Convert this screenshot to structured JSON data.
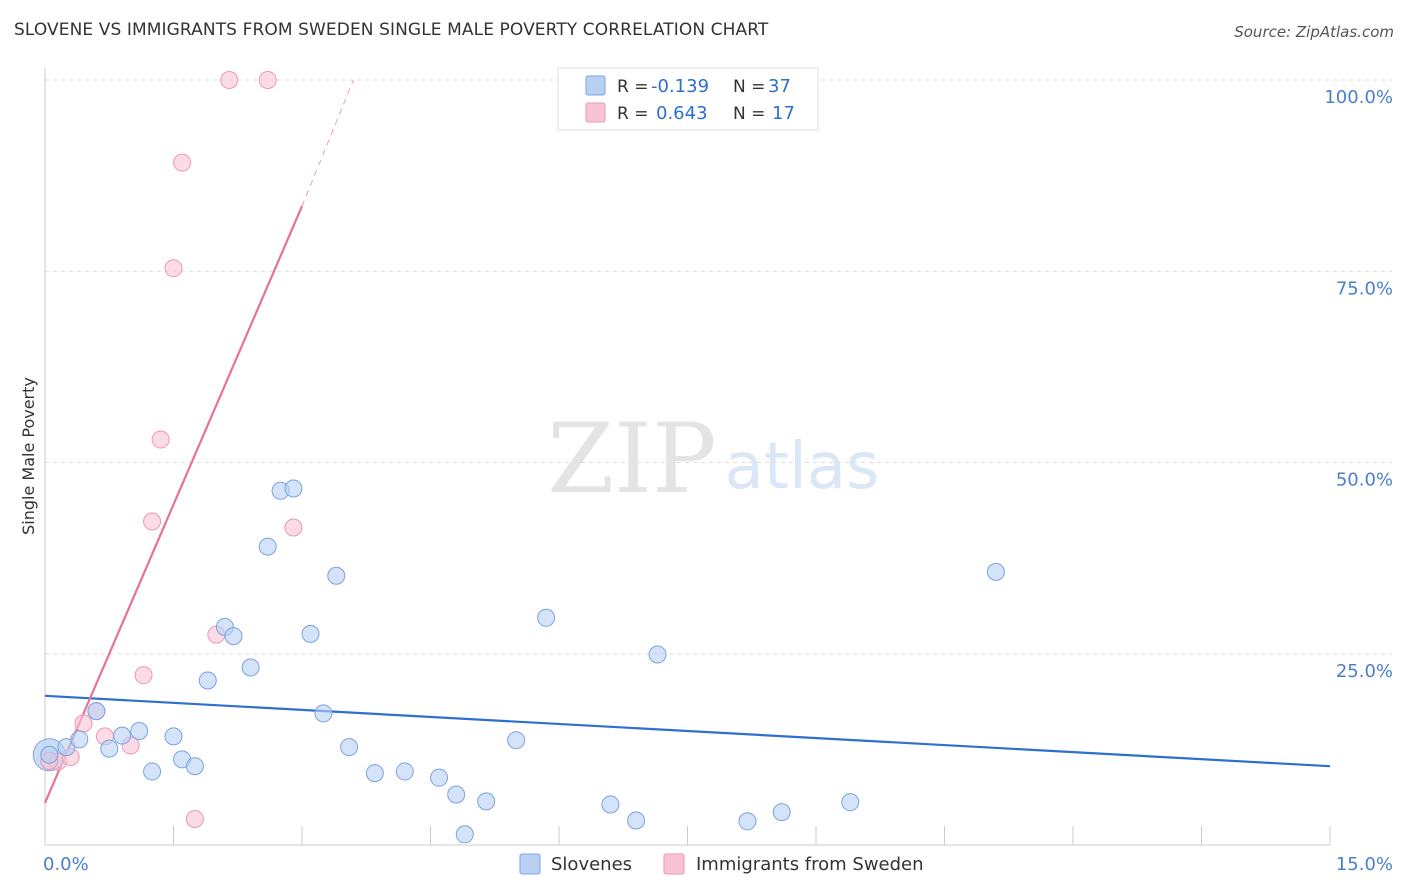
{
  "header": {
    "title": "SLOVENE VS IMMIGRANTS FROM SWEDEN SINGLE MALE POVERTY CORRELATION CHART",
    "source": "Source: ZipAtlas.com"
  },
  "watermark": {
    "zip": "ZIP",
    "atlas": "atlas"
  },
  "colors": {
    "blue_fill": "#b8d0f3",
    "blue_stroke": "#7aa3e0",
    "blue_line": "#2e6fcf",
    "pink_fill": "#f8c3d3",
    "pink_stroke": "#ec98b4",
    "pink_line": "#e8719a",
    "tick_label": "#4a7fd0",
    "grid": "#dddddd"
  },
  "legend": {
    "rows": [
      {
        "r_label": "R =",
        "r_value": "-0.139",
        "n_label": "N =",
        "n_value": "37"
      },
      {
        "r_label": "R =",
        "r_value": "0.643",
        "n_label": "N =",
        "n_value": "17"
      }
    ]
  },
  "chart_data": {
    "type": "scatter",
    "title": "SLOVENE VS IMMIGRANTS FROM SWEDEN SINGLE MALE POVERTY CORRELATION CHART",
    "xlabel": "",
    "ylabel": "Single Male Poverty",
    "xlim": [
      0,
      15
    ],
    "ylim": [
      0,
      100
    ],
    "x_tick_labels": [
      "0.0%",
      "15.0%"
    ],
    "y_ticks": [
      25,
      50,
      75,
      100
    ],
    "y_tick_labels": [
      "25.0%",
      "50.0%",
      "75.0%",
      "100.0%"
    ],
    "series": [
      {
        "name": "Slovenes",
        "points": [
          [
            0.05,
            11.8
          ],
          [
            0.25,
            12.8
          ],
          [
            0.4,
            13.8
          ],
          [
            0.6,
            17.5
          ],
          [
            0.75,
            12.6
          ],
          [
            0.9,
            14.3
          ],
          [
            1.1,
            14.9
          ],
          [
            1.25,
            9.6
          ],
          [
            1.5,
            14.2
          ],
          [
            1.6,
            11.2
          ],
          [
            1.75,
            10.3
          ],
          [
            1.9,
            21.5
          ],
          [
            2.1,
            28.5
          ],
          [
            2.2,
            27.3
          ],
          [
            2.4,
            23.2
          ],
          [
            2.6,
            39.0
          ],
          [
            2.75,
            46.3
          ],
          [
            2.9,
            46.6
          ],
          [
            3.1,
            27.6
          ],
          [
            3.25,
            17.2
          ],
          [
            3.4,
            35.2
          ],
          [
            3.55,
            12.8
          ],
          [
            3.85,
            9.4
          ],
          [
            4.2,
            9.6
          ],
          [
            4.6,
            8.8
          ],
          [
            4.8,
            6.6
          ],
          [
            4.9,
            1.4
          ],
          [
            5.15,
            5.7
          ],
          [
            5.5,
            13.7
          ],
          [
            5.85,
            29.7
          ],
          [
            6.6,
            5.3
          ],
          [
            6.9,
            3.2
          ],
          [
            7.15,
            24.9
          ],
          [
            8.2,
            3.1
          ],
          [
            8.6,
            4.3
          ],
          [
            9.4,
            5.6
          ],
          [
            11.1,
            35.7
          ]
        ]
      },
      {
        "name": "Immigrants from Sweden",
        "points": [
          [
            0.15,
            10.9
          ],
          [
            0.3,
            11.5
          ],
          [
            0.45,
            15.9
          ],
          [
            0.6,
            17.5
          ],
          [
            0.7,
            14.2
          ],
          [
            1.0,
            13.0
          ],
          [
            1.15,
            22.2
          ],
          [
            1.25,
            42.3
          ],
          [
            1.35,
            53.0
          ],
          [
            1.5,
            75.4
          ],
          [
            1.6,
            89.2
          ],
          [
            1.75,
            3.4
          ],
          [
            2.0,
            27.5
          ],
          [
            2.15,
            100.0
          ],
          [
            2.6,
            100.0
          ],
          [
            2.9,
            41.5
          ],
          [
            0.05,
            11.0
          ]
        ]
      }
    ],
    "trend_lines": [
      {
        "series": "Slovenes",
        "x": [
          0,
          15
        ],
        "y": [
          19.5,
          10.3
        ]
      },
      {
        "series": "Immigrants from Sweden",
        "x": [
          0,
          3.0
        ],
        "y": [
          5.5,
          83.5
        ],
        "dashed_to": {
          "x": 3.6,
          "y": 100
        }
      }
    ],
    "bottom_legend": [
      "Slovenes",
      "Immigrants from Sweden"
    ]
  }
}
